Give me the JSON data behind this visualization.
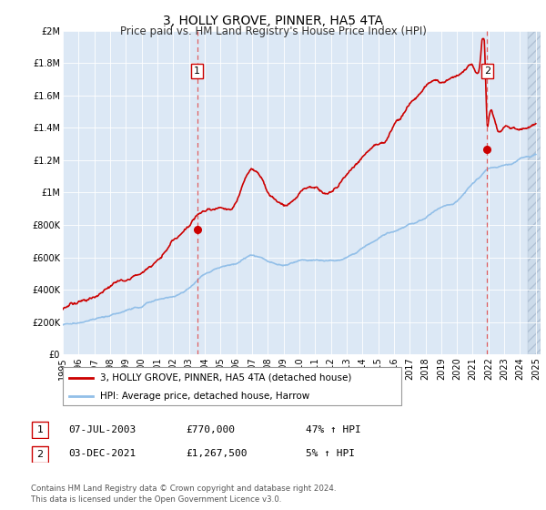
{
  "title": "3, HOLLY GROVE, PINNER, HA5 4TA",
  "subtitle": "Price paid vs. HM Land Registry's House Price Index (HPI)",
  "xlim_left": 1995.0,
  "xlim_right": 2025.3,
  "ylim_bottom": 0,
  "ylim_top": 2000000,
  "yticks": [
    0,
    200000,
    400000,
    600000,
    800000,
    1000000,
    1200000,
    1400000,
    1600000,
    1800000,
    2000000
  ],
  "ytick_labels": [
    "£0",
    "£200K",
    "£400K",
    "£600K",
    "£800K",
    "£1M",
    "£1.2M",
    "£1.4M",
    "£1.6M",
    "£1.8M",
    "£2M"
  ],
  "xtick_years": [
    1995,
    1996,
    1997,
    1998,
    1999,
    2000,
    2001,
    2002,
    2003,
    2004,
    2005,
    2006,
    2007,
    2008,
    2009,
    2010,
    2011,
    2012,
    2013,
    2014,
    2015,
    2016,
    2017,
    2018,
    2019,
    2020,
    2021,
    2022,
    2023,
    2024,
    2025
  ],
  "hpi_color": "#92bfe8",
  "price_color": "#cc0000",
  "marker_color": "#cc0000",
  "transaction1_x": 2003.52,
  "transaction1_y": 770000,
  "transaction2_x": 2021.92,
  "transaction2_y": 1267500,
  "vline_color": "#e06060",
  "plot_bg": "#dce8f5",
  "hatch_bg": "#c8d8e8",
  "hatch_start": 2024.5,
  "legend_label_price": "3, HOLLY GROVE, PINNER, HA5 4TA (detached house)",
  "legend_label_hpi": "HPI: Average price, detached house, Harrow",
  "table_row1": [
    "1",
    "07-JUL-2003",
    "£770,000",
    "47% ↑ HPI"
  ],
  "table_row2": [
    "2",
    "03-DEC-2021",
    "£1,267,500",
    "5% ↑ HPI"
  ],
  "footer": "Contains HM Land Registry data © Crown copyright and database right 2024.\nThis data is licensed under the Open Government Licence v3.0.",
  "title_fontsize": 10,
  "subtitle_fontsize": 8.5,
  "tick_fontsize": 7,
  "label_fontsize": 8,
  "hpi_linewidth": 1.2,
  "price_linewidth": 1.2
}
